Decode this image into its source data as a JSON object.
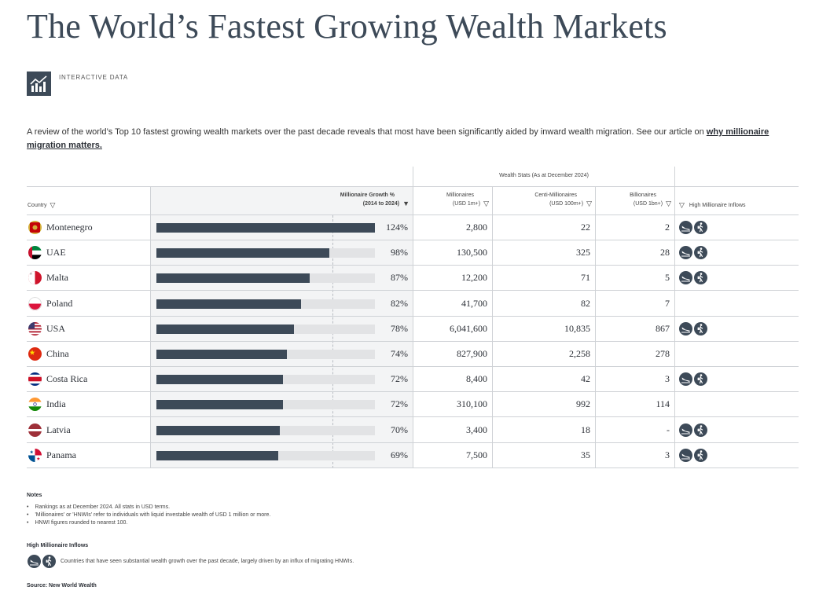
{
  "title": "The World’s Fastest Growing Wealth Markets",
  "badge_label": "INTERACTIVE DATA",
  "badge_icon": "chart-icon",
  "intro_text": "A review of the world’s Top 10 fastest growing wealth markets over the past decade reveals that most have been significantly aided by inward wealth migration. See our article on ",
  "intro_link": "why millionaire migration matters.",
  "chart_data": {
    "type": "table",
    "group_header": "Wealth Stats (As at December 2024)",
    "columns": {
      "country": "Country",
      "growth_line1": "Millionaire Growth %",
      "growth_line2": "(2014 to 2024)",
      "millionaires_line1": "Millionaires",
      "millionaires_line2": "(USD 1m+)",
      "centi_line1": "Centi-Millionaires",
      "centi_line2": "(USD 100m+)",
      "billionaires_line1": "Billionaires",
      "billionaires_line2": "(USD 1bn+)",
      "inflows": "High Millionaire Inflows"
    },
    "bar_max": 124,
    "rows": [
      {
        "country": "Montenegro",
        "flag": "montenegro-flag-icon",
        "growth": 124,
        "growth_label": "124%",
        "millionaires": "2,800",
        "centi": "22",
        "billionaires": "2",
        "high_inflows": true
      },
      {
        "country": "UAE",
        "flag": "uae-flag-icon",
        "growth": 98,
        "growth_label": "98%",
        "millionaires": "130,500",
        "centi": "325",
        "billionaires": "28",
        "high_inflows": true
      },
      {
        "country": "Malta",
        "flag": "malta-flag-icon",
        "growth": 87,
        "growth_label": "87%",
        "millionaires": "12,200",
        "centi": "71",
        "billionaires": "5",
        "high_inflows": true
      },
      {
        "country": "Poland",
        "flag": "poland-flag-icon",
        "growth": 82,
        "growth_label": "82%",
        "millionaires": "41,700",
        "centi": "82",
        "billionaires": "7",
        "high_inflows": false
      },
      {
        "country": "USA",
        "flag": "usa-flag-icon",
        "growth": 78,
        "growth_label": "78%",
        "millionaires": "6,041,600",
        "centi": "10,835",
        "billionaires": "867",
        "high_inflows": true
      },
      {
        "country": "China",
        "flag": "china-flag-icon",
        "growth": 74,
        "growth_label": "74%",
        "millionaires": "827,900",
        "centi": "2,258",
        "billionaires": "278",
        "high_inflows": false
      },
      {
        "country": "Costa Rica",
        "flag": "costa-rica-flag-icon",
        "growth": 72,
        "growth_label": "72%",
        "millionaires": "8,400",
        "centi": "42",
        "billionaires": "3",
        "high_inflows": true
      },
      {
        "country": "India",
        "flag": "india-flag-icon",
        "growth": 72,
        "growth_label": "72%",
        "millionaires": "310,100",
        "centi": "992",
        "billionaires": "114",
        "high_inflows": false
      },
      {
        "country": "Latvia",
        "flag": "latvia-flag-icon",
        "growth": 70,
        "growth_label": "70%",
        "millionaires": "3,400",
        "centi": "18",
        "billionaires": "-",
        "high_inflows": true
      },
      {
        "country": "Panama",
        "flag": "panama-flag-icon",
        "growth": 69,
        "growth_label": "69%",
        "millionaires": "7,500",
        "centi": "35",
        "billionaires": "3",
        "high_inflows": true
      }
    ]
  },
  "colors": {
    "bar": "#3d4a58",
    "track": "#e2e3e5",
    "title": "#3d4a58"
  },
  "inflow_icons": [
    "plane-landing-icon",
    "walking-traveler-icon"
  ],
  "notes": {
    "title": "Notes",
    "items": [
      "Rankings as at December 2024. All stats in USD terms.",
      "'Millionaires' or 'HNWIs' refer to individuals with liquid investable wealth of USD 1 million or more.",
      "HNWI figures rounded to nearest 100."
    ]
  },
  "legend": {
    "title": "High Millionaire Inflows",
    "text": "Countries that have seen substantial wealth growth over the past decade, largely driven by an influx of migrating HNWIs."
  },
  "source": "Source: New World Wealth"
}
